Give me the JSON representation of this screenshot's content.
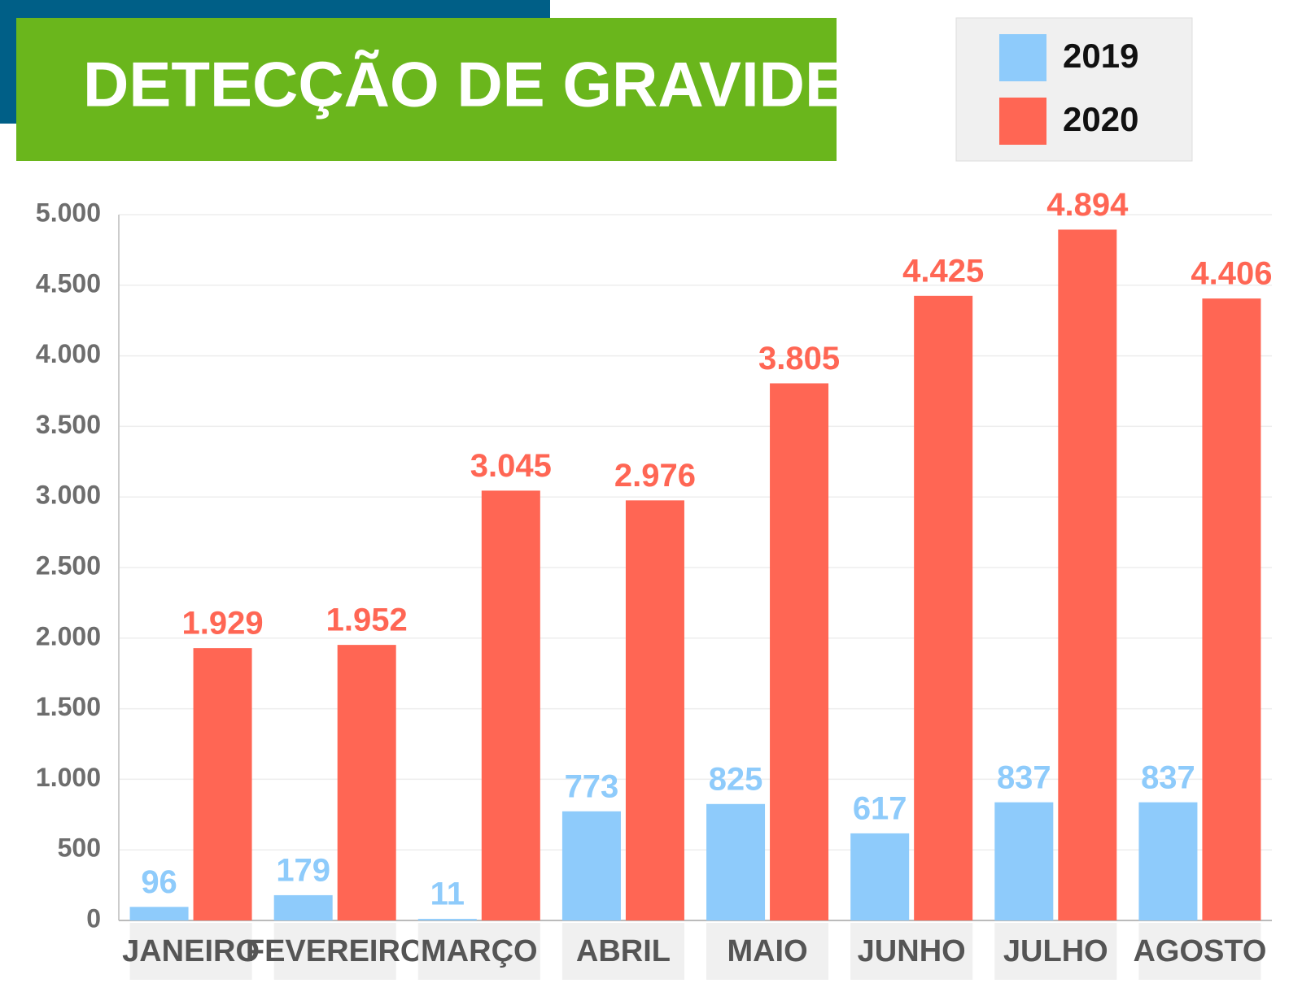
{
  "chart_data": {
    "type": "bar",
    "title": "DETECÇÃO DE GRAVIDEZ",
    "categories": [
      "JANEIRO",
      "FEVEREIRO",
      "MARÇO",
      "ABRIL",
      "MAIO",
      "JUNHO",
      "JULHO",
      "AGOSTO"
    ],
    "series": [
      {
        "name": "2019",
        "color": "#8ecbfb",
        "values": [
          96,
          179,
          11,
          773,
          825,
          617,
          837,
          837
        ]
      },
      {
        "name": "2020",
        "color": "#ff6654",
        "values": [
          1929,
          1952,
          3045,
          2976,
          3805,
          4425,
          4894,
          4406
        ],
        "value_labels": [
          "1.929",
          "1.952",
          "3.045",
          "2.976",
          "3.805",
          "4.425",
          "4.894",
          "4.406"
        ]
      }
    ],
    "ylim": [
      0,
      5000
    ],
    "yticks": [
      0,
      500,
      {
        "value": 1000,
        "label": "1.000"
      },
      {
        "value": 1500,
        "label": "1.500"
      },
      {
        "value": 2000,
        "label": "2.000"
      },
      {
        "value": 2500,
        "label": "2.500"
      },
      {
        "value": 3000,
        "label": "3.000"
      },
      {
        "value": 3500,
        "label": "3.500"
      },
      {
        "value": 4000,
        "label": "4.000"
      },
      {
        "value": 4500,
        "label": "4.500"
      },
      {
        "value": 5000,
        "label": "5.000"
      }
    ],
    "grid": true
  }
}
